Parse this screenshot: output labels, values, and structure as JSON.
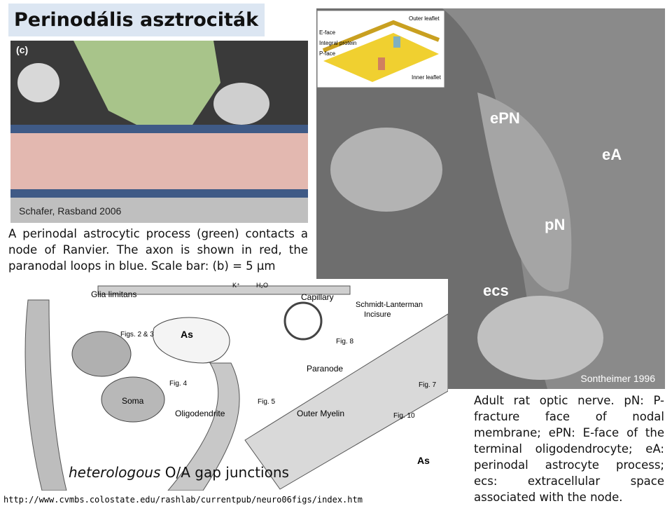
{
  "title": "Perinodális asztrociták",
  "figure_left": {
    "panel_label": "(c)",
    "credit": "Schafer, Rasband 2006",
    "caption": "A perinodal astrocytic process (green) contacts a node of Ranvier. The axon is shown in red, the paranodal loops in blue. Scale bar: (b) = 5 μm"
  },
  "figure_right": {
    "inset_labels": [
      "E-face",
      "Integral protein",
      "P-face",
      "Outer leaflet",
      "Inner leaflet"
    ],
    "labels": [
      "ePN",
      "eA",
      "pN",
      "ecs"
    ],
    "credit": "Sontheimer 1996",
    "caption": "Adult rat optic nerve. pN: P-fracture face of nodal membrane; ePN: E-face of the terminal oligodendrocyte; eA: perinodal astrocyte process; ecs: extracellular space associated with the node."
  },
  "schematic": {
    "labels": [
      "Glia limitans",
      "K⁺",
      "H₂O",
      "Capillary",
      "Schmidt-Lanterman",
      "Incisure",
      "Figs. 2 & 3",
      "As",
      "Fig. 8",
      "Paranode",
      "Fig. 4",
      "Soma",
      "Fig. 5",
      "Oligodendrite",
      "Outer Myelin",
      "Fig. 10",
      "Fig. 7",
      "As"
    ],
    "caption_italic": "heterologous",
    "caption_rest": "O/A gap junctions"
  },
  "source_url": "http://www.cvmbs.colostate.edu/rashlab/currentpub/neuro06figs/index.htm"
}
